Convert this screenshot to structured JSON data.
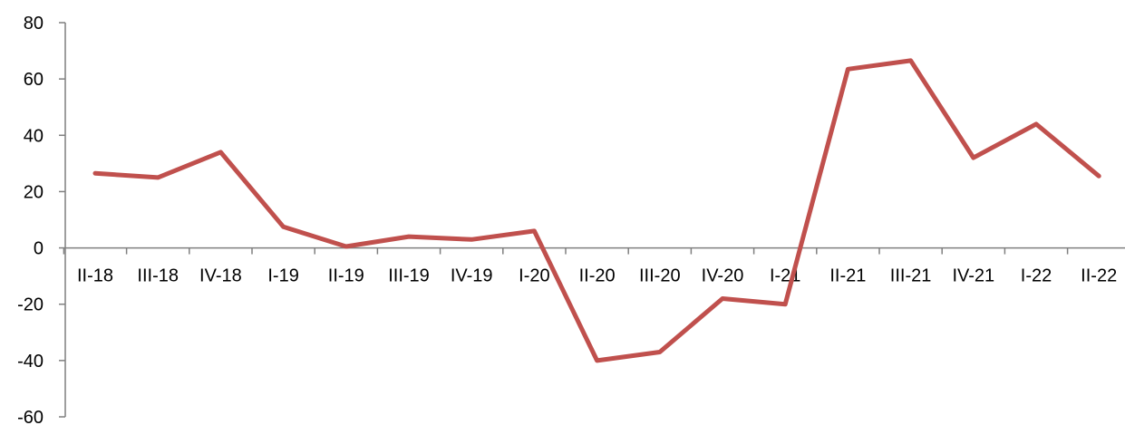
{
  "chart_data": {
    "type": "line",
    "title": "",
    "xlabel": "",
    "ylabel": "",
    "categories": [
      "II-18",
      "III-18",
      "IV-18",
      "I-19",
      "II-19",
      "III-19",
      "IV-19",
      "I-20",
      "II-20",
      "III-20",
      "IV-20",
      "I-21",
      "II-21",
      "III-21",
      "IV-21",
      "I-22",
      "II-22"
    ],
    "series": [
      {
        "values": [
          26.5,
          25,
          34,
          7.5,
          0.5,
          4,
          3,
          6,
          -40,
          -37,
          -18,
          -20,
          63.5,
          66.5,
          32,
          44,
          25.5
        ],
        "color": "#c0504d"
      }
    ],
    "ylim": [
      -60,
      80
    ],
    "yticks": [
      -60,
      -40,
      -20,
      0,
      20,
      40,
      60,
      80
    ],
    "ytick_labels": [
      "-60",
      "-40",
      "-20",
      "0",
      "20",
      "40",
      "60",
      "80"
    ],
    "grid": false,
    "legend": "none",
    "axis_color": "#7f7f7f"
  }
}
